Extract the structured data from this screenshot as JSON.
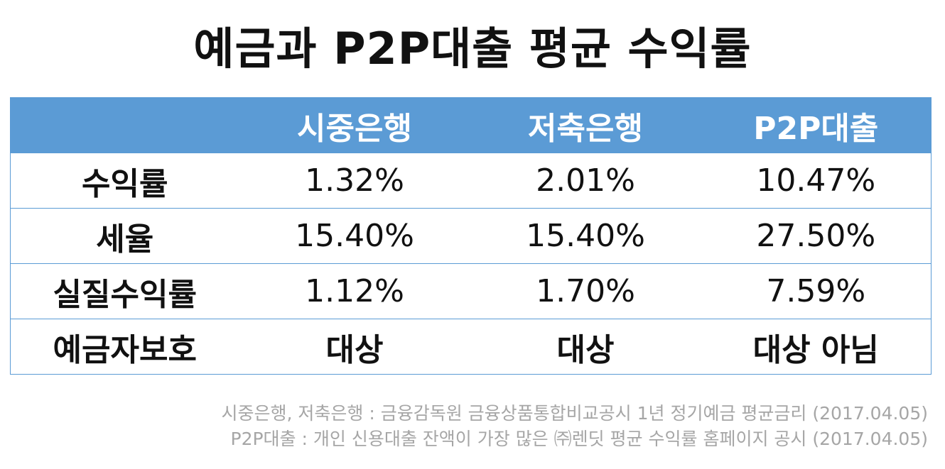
{
  "title": "예금과 P2P대출 평균 수익률",
  "table": {
    "headers": [
      "",
      "시중은행",
      "저축은행",
      "P2P대출"
    ],
    "rows": [
      {
        "label": "수익률",
        "values": [
          "1.32%",
          "2.01%",
          "10.47%"
        ]
      },
      {
        "label": "세율",
        "values": [
          "15.40%",
          "15.40%",
          "27.50%"
        ]
      },
      {
        "label": "실질수익률",
        "values": [
          "1.12%",
          "1.70%",
          "7.59%"
        ]
      },
      {
        "label": "예금자보호",
        "values": [
          "대상",
          "대상",
          "대상 아님"
        ]
      }
    ]
  },
  "notes": [
    "시중은행, 저축은행 : 금융감독원 금융상품통합비교공시 1년 정기예금 평균금리 (2017.04.05)",
    "P2P대출 : 개인 신용대출 잔액이 가장 많은 ㈜렌딧 평균 수익률 홈페이지 공시 (2017.04.05)"
  ],
  "colors": {
    "header_bg": "#5b9bd5",
    "header_text": "#ffffff",
    "body_text": "#111111",
    "note_text": "#a6a6a6"
  }
}
